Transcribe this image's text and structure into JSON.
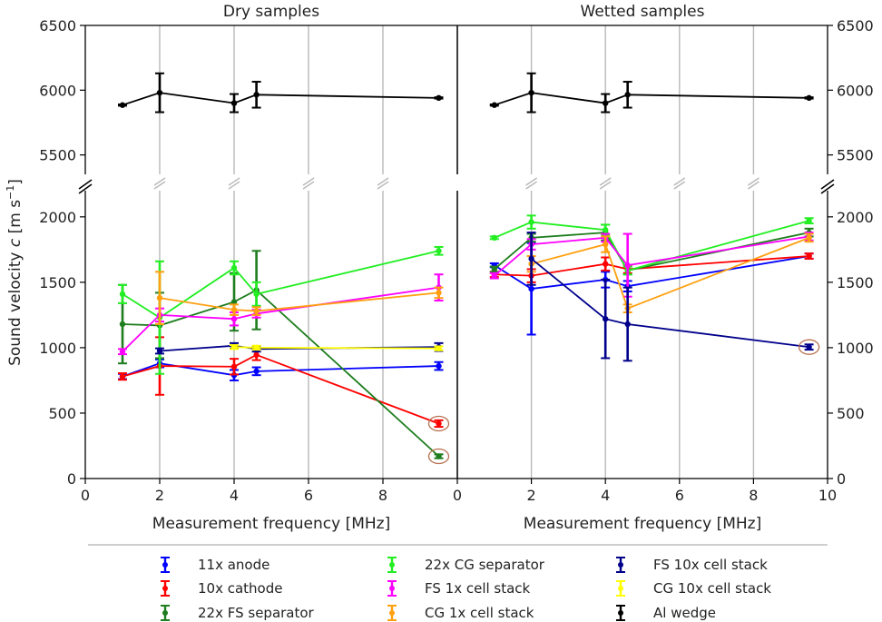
{
  "chart_data": {
    "type": "line",
    "ylabel": "Sound velocity c [m s⁻¹]",
    "ylabel_main": "Sound velocity ",
    "ylabel_var": "c",
    "ylabel_unit": " [m s",
    "ylabel_sup": "−1",
    "ylabel_end": "]",
    "xlim": [
      0,
      10
    ],
    "ylim_upper": [
      5350,
      6500
    ],
    "ylim_lower": [
      0,
      2200
    ],
    "y_ticks_upper": [
      "5500",
      "6000",
      "6500"
    ],
    "y_ticks_lower": [
      "0",
      "500",
      "1000",
      "1500",
      "2000"
    ],
    "grid": "x only",
    "legend_position": "bottom",
    "panels": [
      {
        "title": "Dry samples",
        "xlabel": "Measurement frequency [MHz]",
        "x_ticks": [
          "0",
          "2",
          "4",
          "6",
          "8"
        ],
        "series": [
          {
            "name": "11x anode",
            "color": "#0000ff",
            "x": [
              1,
              2,
              4,
              4.6,
              9.5
            ],
            "y": [
              780,
              880,
              790,
              820,
              860
            ],
            "err": [
              20,
              30,
              40,
              30,
              30
            ]
          },
          {
            "name": "10x cathode",
            "color": "#ff0000",
            "x": [
              1,
              2,
              4,
              4.6,
              9.5
            ],
            "y": [
              780,
              860,
              855,
              945,
              420
            ],
            "err": [
              25,
              220,
              60,
              40,
              25
            ]
          },
          {
            "name": "22x FS separator",
            "color": "#1e7d1e",
            "x": [
              1,
              2,
              4,
              4.6,
              9.5
            ],
            "y": [
              1180,
              1170,
              1350,
              1440,
              170
            ],
            "err": [
              300,
              250,
              220,
              300,
              15
            ]
          },
          {
            "name": "22x CG separator",
            "color": "#22ee22",
            "x": [
              1,
              2,
              4,
              4.6,
              9.5
            ],
            "y": [
              1410,
              1230,
              1610,
              1410,
              1740
            ],
            "err": [
              70,
              430,
              50,
              90,
              30
            ]
          },
          {
            "name": "FS 1x cell stack",
            "color": "#ff00ff",
            "x": [
              1,
              2,
              4,
              4.6,
              9.5
            ],
            "y": [
              970,
              1250,
              1220,
              1260,
              1460
            ],
            "err": [
              20,
              50,
              50,
              30,
              100
            ]
          },
          {
            "name": "CG 1x cell stack",
            "color": "#ffa010",
            "x": [
              2,
              4,
              4.6,
              9.5
            ],
            "y": [
              1380,
              1290,
              1280,
              1420
            ],
            "err": [
              200,
              40,
              30,
              40
            ]
          },
          {
            "name": "FS 10x cell stack",
            "color": "#00008b",
            "x": [
              2,
              4,
              4.6,
              9.5
            ],
            "y": [
              975,
              1015,
              990,
              1005
            ],
            "err": [
              20,
              20,
              20,
              30
            ]
          },
          {
            "name": "CG 10x cell stack",
            "color": "#ffff00",
            "x": [
              4,
              4.6,
              9.5
            ],
            "y": [
              1005,
              1000,
              995
            ],
            "err": [
              15,
              15,
              15
            ]
          },
          {
            "name": "Al wedge",
            "color": "#000000",
            "x": [
              1,
              2,
              4,
              4.6,
              9.5
            ],
            "y": [
              5885,
              5980,
              5900,
              5965,
              5940
            ],
            "err": [
              5,
              150,
              70,
              100,
              5
            ]
          }
        ],
        "circled_points": [
          {
            "x": 9.5,
            "y": 420
          },
          {
            "x": 9.5,
            "y": 170
          }
        ]
      },
      {
        "title": "Wetted samples",
        "xlabel": "Measurement frequency [MHz]",
        "x_ticks": [
          "0",
          "2",
          "4",
          "6",
          "8",
          "10"
        ],
        "series": [
          {
            "name": "11x anode",
            "color": "#0000ff",
            "x": [
              1,
              2,
              4,
              4.6,
              9.5
            ],
            "y": [
              1630,
              1450,
              1520,
              1470,
              1700
            ],
            "err": [
              15,
              350,
              60,
              40,
              20
            ]
          },
          {
            "name": "10x cathode",
            "color": "#ff0000",
            "x": [
              1,
              2,
              4,
              4.6,
              9.5
            ],
            "y": [
              1560,
              1550,
              1640,
              1600,
              1700
            ],
            "err": [
              20,
              50,
              50,
              30,
              20
            ]
          },
          {
            "name": "22x FS separator",
            "color": "#1e7d1e",
            "x": [
              1,
              2,
              4,
              4.6,
              9.5
            ],
            "y": [
              1600,
              1840,
              1880,
              1590,
              1880
            ],
            "err": [
              20,
              30,
              60,
              30,
              30
            ]
          },
          {
            "name": "22x CG separator",
            "color": "#22ee22",
            "x": [
              1,
              2,
              4,
              4.6,
              9.5
            ],
            "y": [
              1840,
              1960,
              1900,
              1590,
              1970
            ],
            "err": [
              10,
              50,
              40,
              30,
              20
            ]
          },
          {
            "name": "FS 1x cell stack",
            "color": "#ff00ff",
            "x": [
              1,
              2,
              4,
              4.6,
              9.5
            ],
            "y": [
              1550,
              1790,
              1840,
              1630,
              1850
            ],
            "err": [
              20,
              40,
              30,
              240,
              30
            ]
          },
          {
            "name": "CG 1x cell stack",
            "color": "#ffa010",
            "x": [
              2,
              4,
              4.6,
              9.5
            ],
            "y": [
              1640,
              1790,
              1300,
              1840
            ],
            "err": [
              60,
              60,
              30,
              30
            ]
          },
          {
            "name": "FS 10x cell stack",
            "color": "#00008b",
            "x": [
              2,
              4,
              4.6,
              9.5
            ],
            "y": [
              1680,
              1220,
              1180,
              1005
            ],
            "err": [
              200,
              300,
              280,
              20
            ]
          },
          {
            "name": "Al wedge",
            "color": "#000000",
            "x": [
              1,
              2,
              4,
              4.6,
              9.5
            ],
            "y": [
              5885,
              5980,
              5900,
              5965,
              5940
            ],
            "err": [
              5,
              150,
              70,
              100,
              5
            ]
          }
        ],
        "circled_points": [
          {
            "x": 9.5,
            "y": 1005
          }
        ]
      }
    ]
  },
  "legend": {
    "items": [
      {
        "name": "11x anode",
        "color": "#0000ff",
        "col": 0,
        "row": 0
      },
      {
        "name": "10x cathode",
        "color": "#ff0000",
        "col": 0,
        "row": 1
      },
      {
        "name": "22x FS separator",
        "color": "#1e7d1e",
        "col": 0,
        "row": 2
      },
      {
        "name": "22x CG separator",
        "color": "#22ee22",
        "col": 1,
        "row": 0
      },
      {
        "name": "FS 1x cell stack",
        "color": "#ff00ff",
        "col": 1,
        "row": 1
      },
      {
        "name": "CG 1x cell stack",
        "color": "#ffa010",
        "col": 1,
        "row": 2
      },
      {
        "name": "FS 10x cell stack",
        "color": "#00008b",
        "col": 2,
        "row": 0
      },
      {
        "name": "CG 10x cell stack",
        "color": "#ffff00",
        "col": 2,
        "row": 1
      },
      {
        "name": "Al wedge",
        "color": "#000000",
        "col": 2,
        "row": 2
      }
    ]
  },
  "styles": {
    "grid_color": "#b8b8b8",
    "circle_color": "#b87050"
  }
}
